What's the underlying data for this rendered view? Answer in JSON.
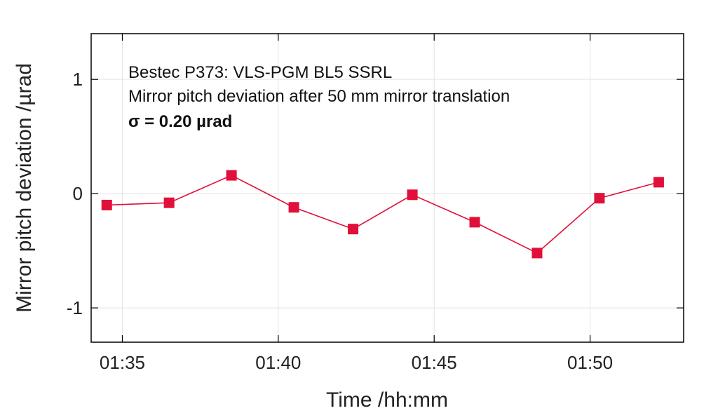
{
  "chart_data": {
    "type": "line",
    "xlabel": "Time /hh:mm",
    "ylabel": "Mirror pitch deviation /µrad",
    "x_ticks": [
      {
        "value": "01:35",
        "label": "01:35"
      },
      {
        "value": "01:40",
        "label": "01:40"
      },
      {
        "value": "01:45",
        "label": "01:45"
      },
      {
        "value": "01:50",
        "label": "01:50"
      }
    ],
    "y_ticks": [
      {
        "value": 1,
        "label": "1"
      },
      {
        "value": 0,
        "label": "0"
      },
      {
        "value": -1,
        "label": "-1"
      }
    ],
    "xlim": [
      "01:34.0",
      "01:53.0"
    ],
    "ylim": [
      -1.3,
      1.4
    ],
    "grid": true,
    "annotations": [
      "Bestec P373: VLS-PGM BL5 SSRL",
      "Mirror pitch deviation after 50 mm mirror translation",
      "σ = 0.20 µrad"
    ],
    "series": [
      {
        "color": "#e0103a",
        "marker": "square",
        "x": [
          "01:34.5",
          "01:36.5",
          "01:38.5",
          "01:40.5",
          "01:42.4",
          "01:44.3",
          "01:46.3",
          "01:48.3",
          "01:50.3",
          "01:52.2"
        ],
        "y": [
          -0.1,
          -0.08,
          0.16,
          -0.12,
          -0.31,
          -0.01,
          -0.25,
          -0.52,
          -0.04,
          0.1
        ]
      }
    ]
  }
}
